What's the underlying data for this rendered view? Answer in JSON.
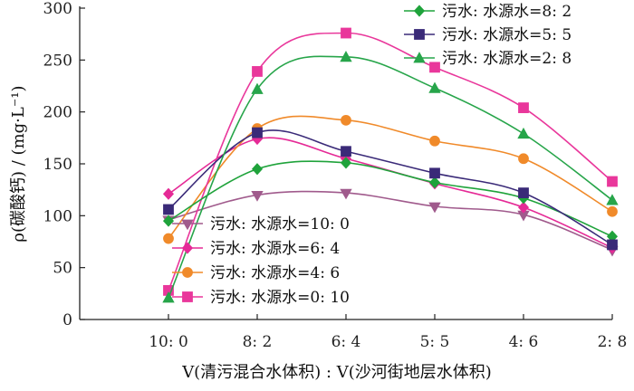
{
  "chart_data": {
    "type": "line",
    "xlabel": "V(清污混合水体积) : V(沙河街地层水体积)",
    "ylabel": "ρ(碳酸钙) / (mg·L⁻¹)",
    "ylim": [
      0,
      300
    ],
    "yticks": [
      "0",
      "50",
      "100",
      "150",
      "200",
      "250",
      "300"
    ],
    "categories": [
      "10: 0",
      "8: 2",
      "6: 4",
      "5: 5",
      "4: 6",
      "2: 8"
    ],
    "x_range": [
      -0.5,
      5.5
    ],
    "grid": false,
    "curve": "smoothed",
    "legends": [
      {
        "placement": "top-right",
        "entries": [
          "污水: 水源水=8: 2",
          "污水: 水源水=5: 5",
          "污水: 水源水=2: 8"
        ]
      },
      {
        "placement": "bottom-left",
        "entries": [
          "污水: 水源水=10: 0",
          "污水: 水源水=6: 4",
          "污水: 水源水=4: 6",
          "污水: 水源水=0: 10"
        ]
      }
    ],
    "series": [
      {
        "name": "污水: 水源水=10: 0",
        "marker": "triangle-down",
        "color": "#a05a8c",
        "x": [
          -0.5,
          0.5,
          1.5,
          2.5,
          3.5,
          4.5
        ],
        "values": [
          96,
          120,
          122,
          109,
          101,
          67
        ]
      },
      {
        "name": "污水: 水源水=6: 4",
        "marker": "diamond",
        "color": "#e52a96",
        "x": [
          -0.5,
          0.5,
          1.5,
          2.5,
          3.5,
          4.5
        ],
        "values": [
          121,
          174,
          155,
          131,
          108,
          69
        ]
      },
      {
        "name": "污水: 水源水=4: 6",
        "marker": "circle",
        "color": "#f08a2a",
        "x": [
          -0.5,
          0.5,
          1.5,
          2.5,
          3.5,
          4.5
        ],
        "values": [
          78,
          184,
          192,
          172,
          155,
          104
        ]
      },
      {
        "name": "污水: 水源水=0: 10",
        "marker": "square",
        "color": "#e9379b",
        "x": [
          -0.5,
          0.5,
          1.5,
          2.5,
          3.5,
          4.5
        ],
        "values": [
          28,
          239,
          276,
          243,
          204,
          133
        ]
      },
      {
        "name": "污水: 水源水=8: 2",
        "marker": "diamond",
        "color": "#1fa33b",
        "x": [
          -0.5,
          0.5,
          1.5,
          2.5,
          3.5,
          4.5
        ],
        "values": [
          95,
          145,
          151,
          132,
          117,
          80
        ]
      },
      {
        "name": "污水: 水源水=5: 5",
        "marker": "square",
        "color": "#3a2a78",
        "x": [
          -0.5,
          0.5,
          1.5,
          2.5,
          3.5,
          4.5
        ],
        "values": [
          106,
          180,
          162,
          141,
          122,
          72
        ]
      },
      {
        "name": "污水: 水源水=2: 8",
        "marker": "triangle",
        "color": "#27a54a",
        "x": [
          -0.5,
          0.5,
          1.5,
          2.5,
          3.5,
          4.5
        ],
        "values": [
          21,
          222,
          253,
          223,
          179,
          115
        ]
      }
    ]
  }
}
